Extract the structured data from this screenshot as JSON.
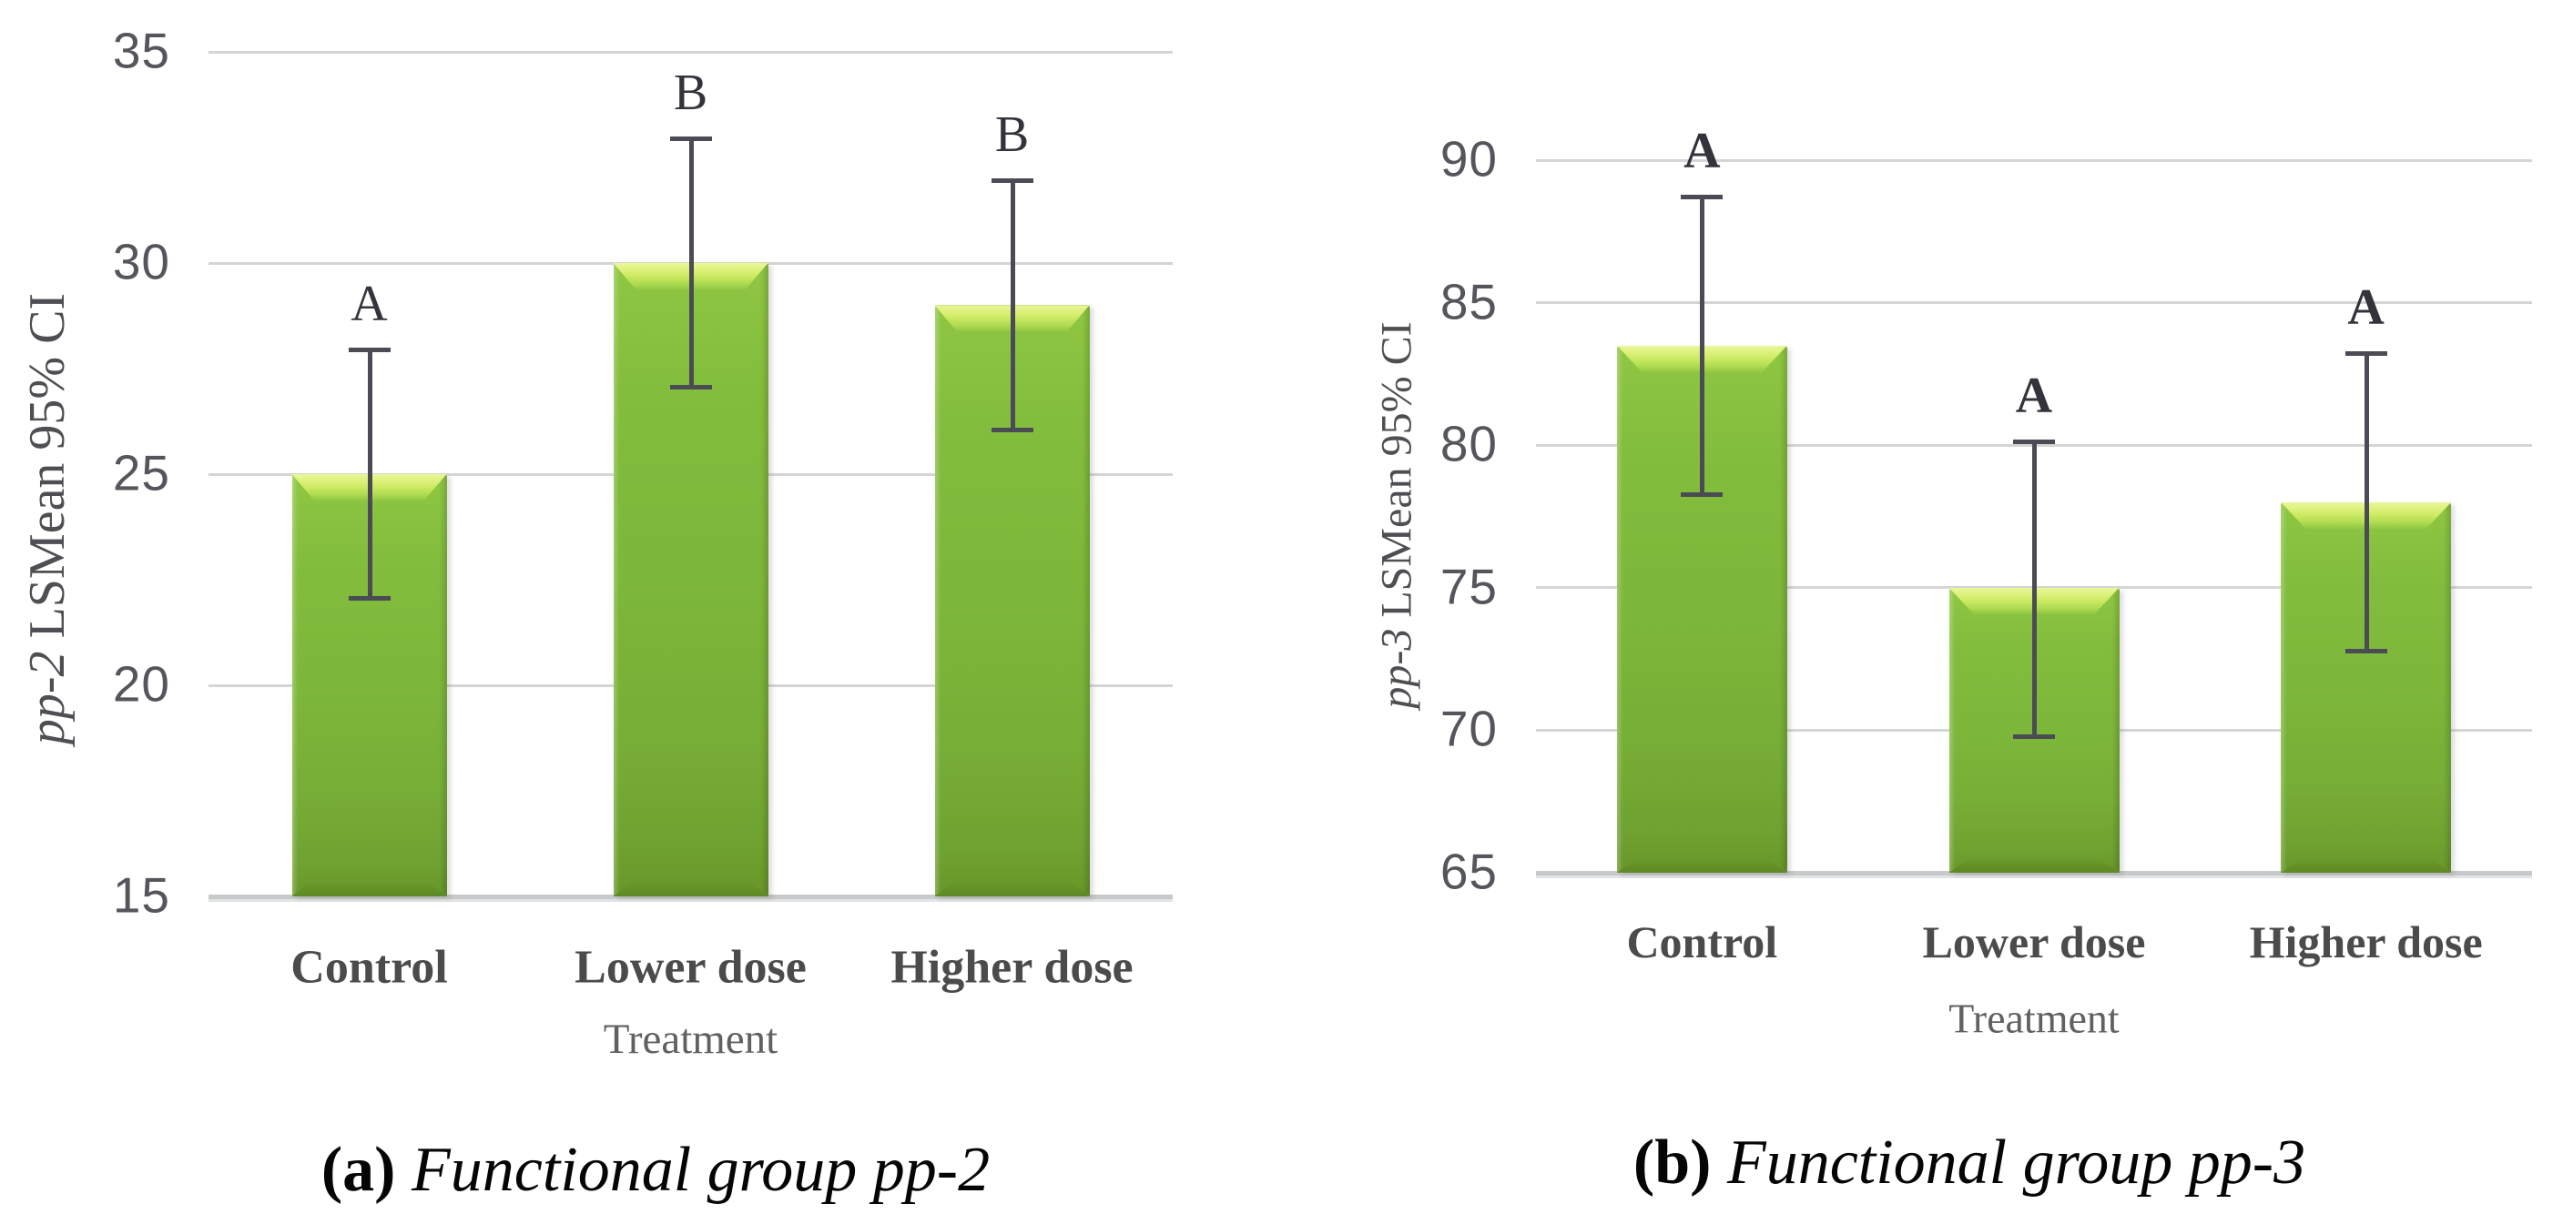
{
  "figure": {
    "background": "#ffffff",
    "bar_fill": "#7db73a",
    "bar_highlight": "#d3ed69",
    "bar_shadow_edge": "#5d8a24",
    "error_bar_color": "#4a4b54",
    "gridline_color": "#d5d5d5",
    "tick_label_color": "#55565c"
  },
  "chart_data": [
    {
      "type": "bar",
      "panel": "a",
      "title": "",
      "categories": [
        "Control",
        "Lower dose",
        "Higher dose"
      ],
      "values": [
        25,
        30,
        29
      ],
      "ci_low": [
        22,
        27,
        26
      ],
      "ci_high": [
        28,
        33,
        32
      ],
      "sig_letters": [
        "A",
        "B",
        "B"
      ],
      "sig_letters_bold": false,
      "xlabel": "Treatment",
      "ylabel": "pp-2 LSMean 95% CI",
      "ylabel_parts": {
        "italic": "pp-2",
        "rest": " LSMean 95% CI"
      },
      "ylim": [
        15,
        35
      ],
      "yticks": [
        15,
        20,
        25,
        30,
        35
      ],
      "grid": true,
      "legend_position": null,
      "caption": "(a) Functional group pp-2",
      "caption_parts": {
        "label": "(a)",
        "text": " Functional group pp-2"
      }
    },
    {
      "type": "bar",
      "panel": "b",
      "title": "",
      "categories": [
        "Control",
        "Lower dose",
        "Higher dose"
      ],
      "values": [
        83.5,
        75,
        78
      ],
      "ci_low": [
        78.2,
        69.7,
        72.7
      ],
      "ci_high": [
        88.8,
        80.2,
        83.3
      ],
      "sig_letters": [
        "A",
        "A",
        "A"
      ],
      "sig_letters_bold": true,
      "xlabel": "Treatment",
      "ylabel": "pp-3 LSMean 95% CI",
      "ylabel_parts": {
        "italic": "pp-3",
        "rest": " LSMean 95% CI"
      },
      "ylim": [
        65,
        90
      ],
      "yticks": [
        65,
        70,
        75,
        80,
        85,
        90
      ],
      "grid": true,
      "legend_position": null,
      "caption": "(b) Functional group pp-3",
      "caption_parts": {
        "label": "(b)",
        "text": " Functional group pp-3"
      }
    }
  ]
}
